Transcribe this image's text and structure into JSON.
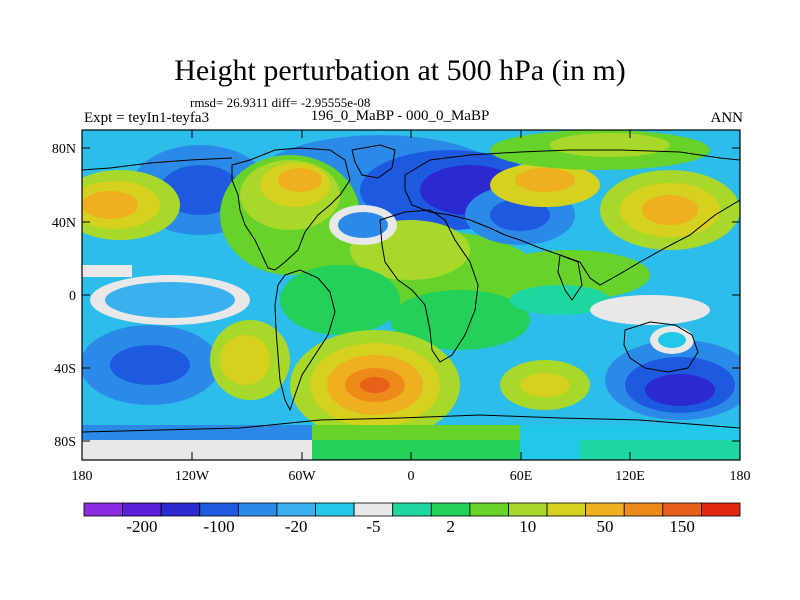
{
  "title": "Height perturbation at 500 hPa (in m)",
  "stats_line": "rmsd= 26.9311 diff= -2.95555e-08",
  "left_label": "Expt = teyIn1-teyfa3",
  "center_label": "196_0_MaBP - 000_0_MaBP",
  "right_label": "ANN",
  "lat_ticks": [
    "80N",
    "40N",
    "0",
    "40S",
    "80S"
  ],
  "lon_ticks": [
    "180",
    "120W",
    "60W",
    "0",
    "60E",
    "120E",
    "180"
  ],
  "colorbar": {
    "labels": [
      "-200",
      "-100",
      "-20",
      "-5",
      "2",
      "10",
      "50",
      "150"
    ],
    "colors": [
      "#8b2be2",
      "#5a1fd6",
      "#2a2ad0",
      "#1e5ae0",
      "#2b8ae8",
      "#3ab0ee",
      "#22c8e8",
      "#e8e8e8",
      "#1ed7a0",
      "#22d05a",
      "#66d22a",
      "#a8d82a",
      "#d6d01e",
      "#eeb020",
      "#ee8a1a",
      "#e8601a",
      "#e02810"
    ]
  }
}
